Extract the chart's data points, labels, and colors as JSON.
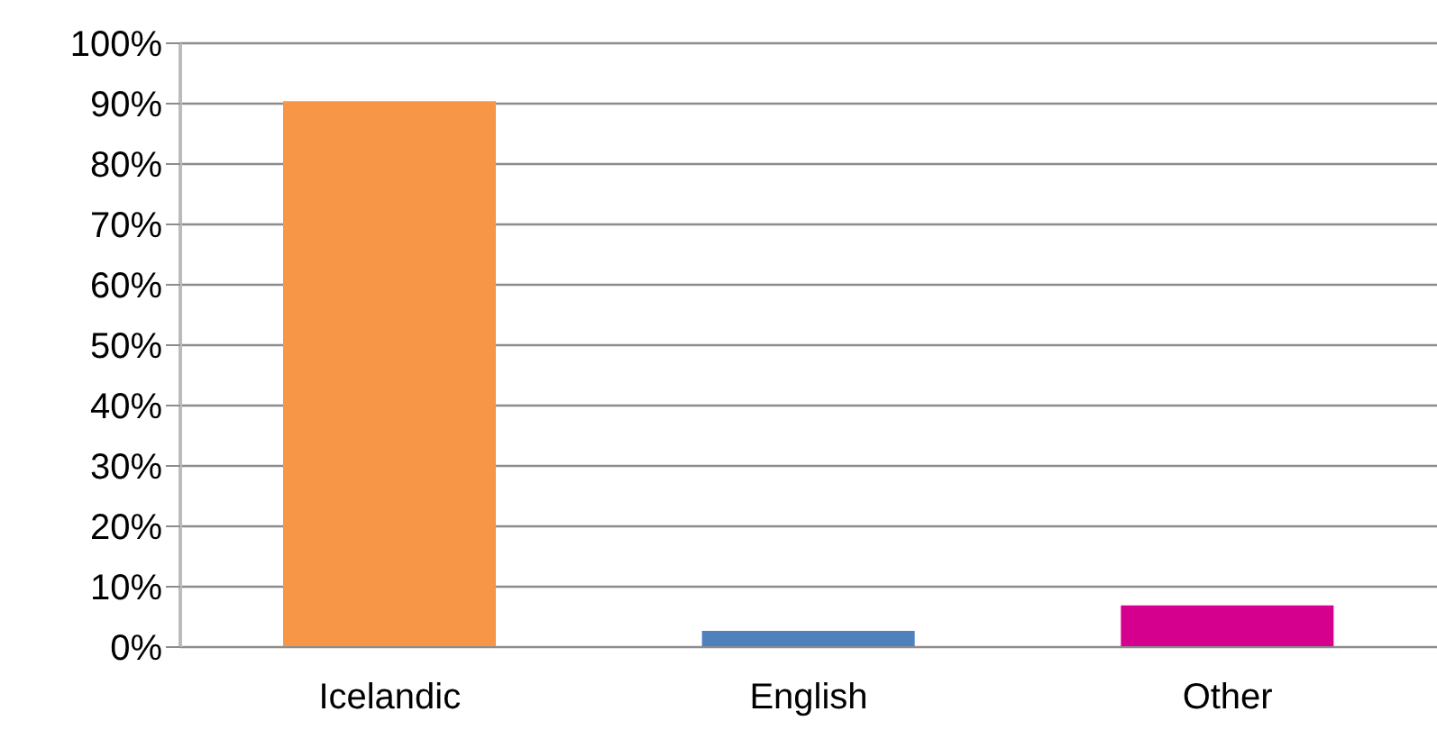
{
  "chart_data": {
    "type": "bar",
    "categories": [
      "Icelandic",
      "English",
      "Other"
    ],
    "values": [
      90.4,
      2.7,
      6.9
    ],
    "colors": [
      "#f79646",
      "#4f81bd",
      "#d6008f"
    ],
    "ylim": [
      0,
      100
    ],
    "yticks": [
      {
        "value": 0,
        "label": "0%"
      },
      {
        "value": 10,
        "label": "10%"
      },
      {
        "value": 20,
        "label": "20%"
      },
      {
        "value": 30,
        "label": "30%"
      },
      {
        "value": 40,
        "label": "40%"
      },
      {
        "value": 50,
        "label": "50%"
      },
      {
        "value": 60,
        "label": "60%"
      },
      {
        "value": 70,
        "label": "70%"
      },
      {
        "value": 80,
        "label": "80%"
      },
      {
        "value": 90,
        "label": "90%"
      },
      {
        "value": 100,
        "label": "100%"
      }
    ],
    "grid": "y"
  }
}
